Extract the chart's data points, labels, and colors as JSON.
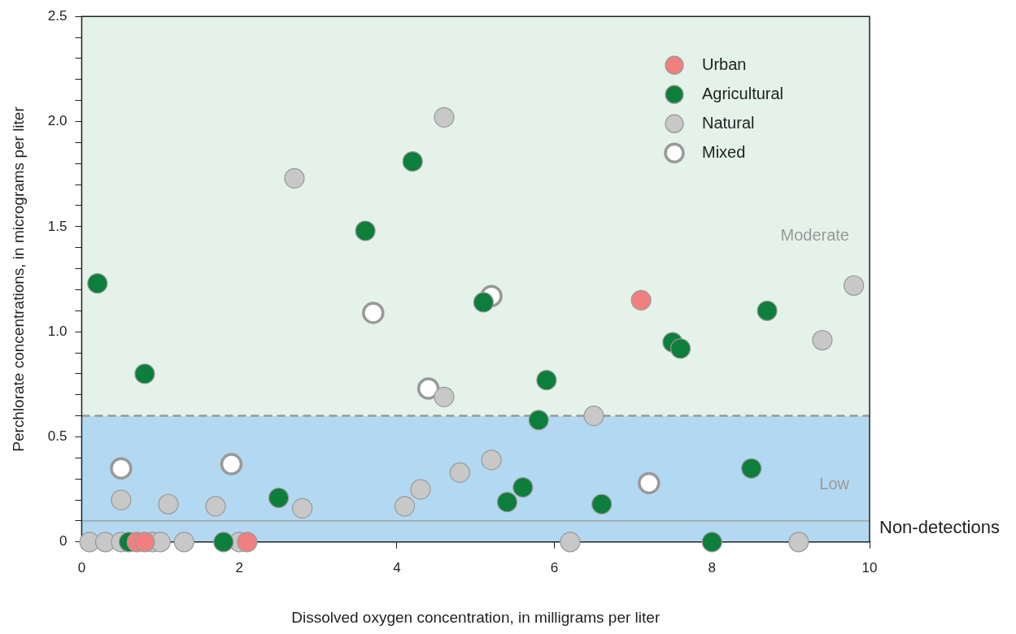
{
  "chart_data": {
    "type": "scatter",
    "xlabel": "Dissolved oxygen concentration, in milligrams per liter",
    "ylabel": "Perchlorate concentrations, in micrograms per liter",
    "xlim": [
      0,
      10
    ],
    "xticks": [
      0,
      2,
      4,
      6,
      8,
      10
    ],
    "ylim": [
      0,
      2.5
    ],
    "yticks": [
      0,
      {
        "value": 0.1,
        "label": null
      },
      {
        "value": 0.2,
        "label": null
      },
      {
        "value": 0.3,
        "label": null
      },
      {
        "value": 0.4,
        "label": null
      },
      0.5,
      {
        "value": 0.6,
        "label": null
      },
      {
        "value": 0.7,
        "label": null
      },
      {
        "value": 0.8,
        "label": null
      },
      {
        "value": 0.9,
        "label": null
      },
      {
        "value": 1,
        "label": "1.0"
      },
      {
        "value": 1.1,
        "label": null
      },
      {
        "value": 1.2,
        "label": null
      },
      {
        "value": 1.3,
        "label": null
      },
      {
        "value": 1.4,
        "label": null
      },
      1.5,
      {
        "value": 1.6,
        "label": null
      },
      {
        "value": 1.7,
        "label": null
      },
      {
        "value": 1.8,
        "label": null
      },
      {
        "value": 1.9,
        "label": null
      },
      {
        "value": 2,
        "label": "2.0"
      },
      {
        "value": 2.1,
        "label": null
      },
      {
        "value": 2.2,
        "label": null
      },
      {
        "value": 2.3,
        "label": null
      },
      {
        "value": 2.4,
        "label": null
      },
      2.5
    ],
    "grid": false,
    "legend": "top right",
    "marker": "circle",
    "bands": [
      {
        "axis": "y",
        "from": 0,
        "to": 0.6,
        "label": "Low",
        "color": "#b3d8f1"
      },
      {
        "axis": "y",
        "from": 0.6,
        "to": 2.5,
        "label": "Moderate",
        "color": "#e4f2ea"
      }
    ],
    "ref_lines": [
      {
        "axis": "y",
        "value": 0.6,
        "color": "#999999",
        "line_style": "dashed"
      },
      {
        "axis": "y",
        "value": 0.1,
        "label": "Non-detections",
        "color": "#999999",
        "line_style": "solid"
      }
    ],
    "series": [
      {
        "name": "Urban",
        "color": "#f08080",
        "x": [
          7.1,
          0.7,
          0.8,
          2.1
        ],
        "values": [
          1.15,
          0,
          0,
          0
        ]
      },
      {
        "name": "Agricultural",
        "color": "#0d7e3c",
        "x": [
          0.2,
          0.8,
          3.6,
          4.2,
          5.1,
          5.9,
          5.8,
          7.5,
          7.6,
          8.7,
          2.5,
          5.4,
          5.6,
          6.6,
          8.5,
          0.6,
          1.8,
          8.0
        ],
        "values": [
          1.23,
          0.8,
          1.48,
          1.81,
          1.14,
          0.77,
          0.58,
          0.95,
          0.92,
          1.1,
          0.21,
          0.19,
          0.26,
          0.18,
          0.35,
          0,
          0,
          0
        ]
      },
      {
        "name": "Natural",
        "color": "#c8c8c9",
        "x": [
          4.6,
          2.7,
          9.8,
          9.4,
          4.6,
          6.5,
          0.5,
          1.1,
          1.7,
          2.8,
          4.1,
          4.3,
          4.8,
          5.2,
          0.1,
          0.3,
          0.5,
          0.9,
          1.0,
          1.3,
          2.0,
          6.2,
          9.1
        ],
        "values": [
          2.02,
          1.73,
          1.22,
          0.96,
          0.69,
          0.6,
          0.2,
          0.18,
          0.17,
          0.16,
          0.17,
          0.25,
          0.33,
          0.39,
          0,
          0,
          0,
          0,
          0,
          0,
          0,
          0,
          0
        ]
      },
      {
        "name": "Mixed",
        "color": "#ffffff",
        "x": [
          0.5,
          1.9,
          3.7,
          4.4,
          5.2,
          7.2
        ],
        "values": [
          0.35,
          0.37,
          1.09,
          0.73,
          1.17,
          0.28
        ]
      }
    ]
  }
}
